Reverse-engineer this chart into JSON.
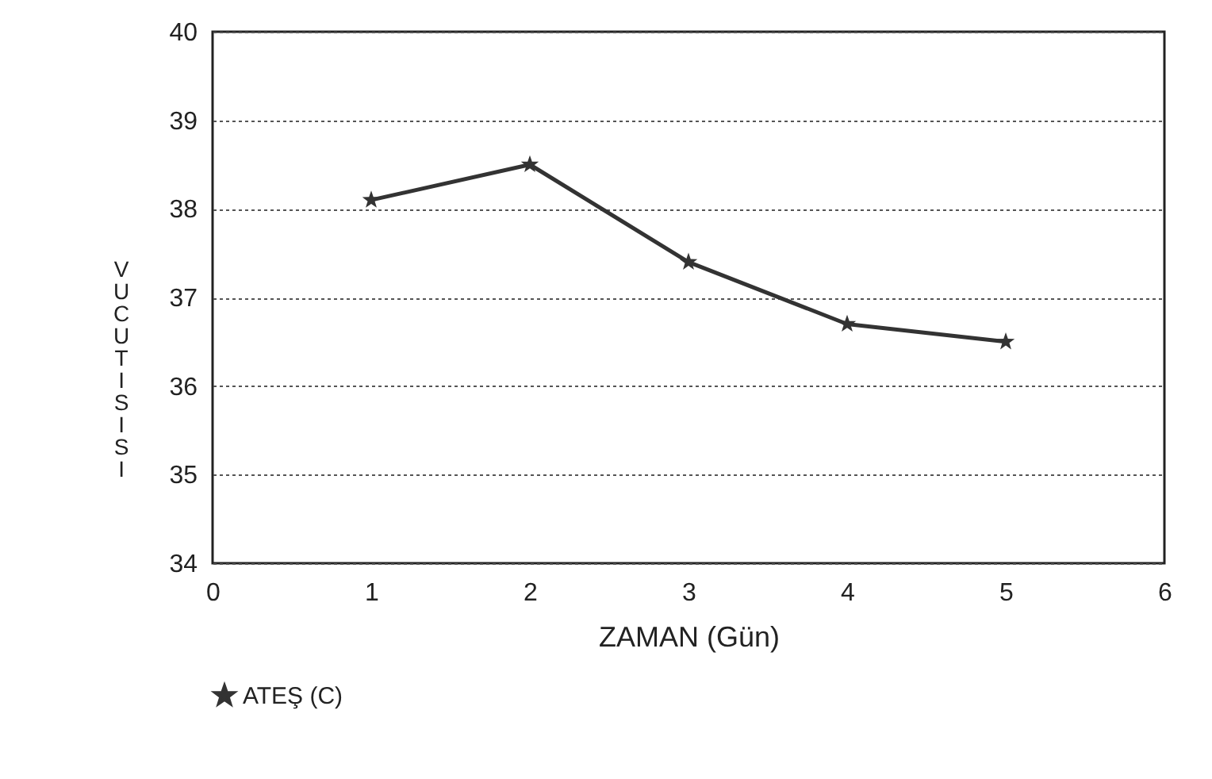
{
  "chart_data": {
    "type": "line",
    "xlabel": "ZAMAN (Gün)",
    "ylabel": "VUCUT ISISI",
    "x": [
      1,
      2,
      3,
      4,
      5
    ],
    "series": [
      {
        "name": "ATEŞ (C)",
        "color": "#333333",
        "values": [
          38.1,
          38.5,
          37.4,
          36.7,
          36.5
        ]
      }
    ],
    "xlim": [
      0,
      6
    ],
    "xticks": [
      0,
      1,
      2,
      3,
      4,
      5,
      6
    ],
    "ylim": [
      34,
      40
    ],
    "yticks": [
      34,
      35,
      36,
      37,
      38,
      39,
      40
    ],
    "grid": "y",
    "legend": "bottom",
    "marker": "star",
    "line_style": "solid"
  }
}
